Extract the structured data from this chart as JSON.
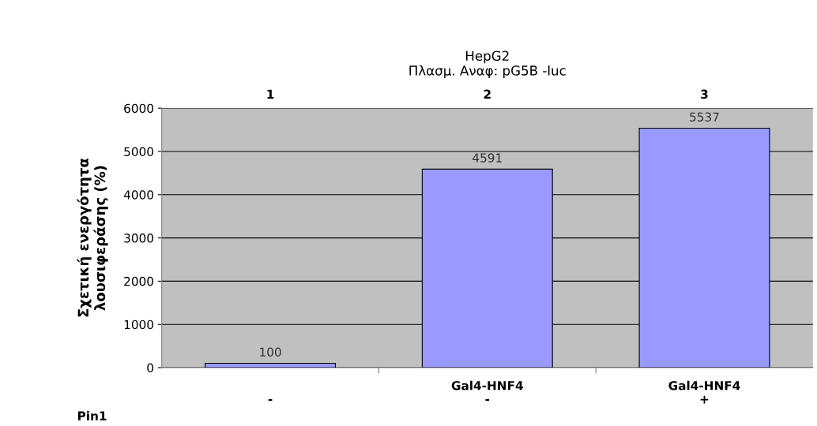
{
  "chart_data": {
    "type": "bar",
    "title": "HepG2\nΠλασμ. Αναφ: pG5B -luc",
    "ylabel": "Σχετική ενεργότητα\nλουσιφεράσης (%)",
    "categories": [
      "\n-",
      "Gal4-HNF4\n-",
      "Gal4-HNF4\n+"
    ],
    "values": [
      100,
      4591,
      5537
    ],
    "color": "#9999ff",
    "ylim": [
      0,
      6000
    ],
    "yticks": [
      0,
      1000,
      2000,
      3000,
      4000,
      5000,
      6000
    ],
    "grid": "y",
    "data_labels": true,
    "annotations": [
      "1",
      "2",
      "3",
      "Pin1"
    ]
  }
}
